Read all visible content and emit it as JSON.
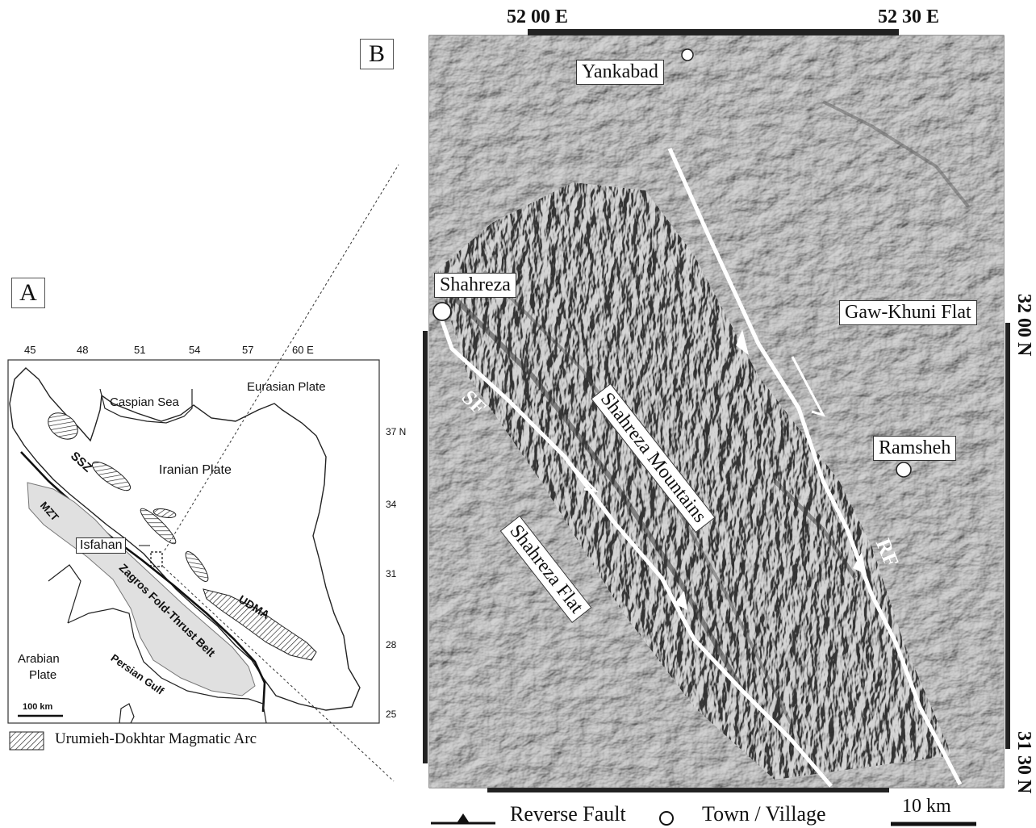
{
  "panel_a": {
    "label": "A",
    "lon_ticks": [
      "45",
      "48",
      "51",
      "54",
      "57",
      "60 E"
    ],
    "lat_ticks": [
      "37 N",
      "34",
      "31",
      "28",
      "25"
    ],
    "place_labels": {
      "caspian_sea": "Caspian Sea",
      "eurasian_plate": "Eurasian Plate",
      "iranian_plate": "Iranian Plate",
      "ssz": "SSZ",
      "mzt": "MZT",
      "isfahan": "Isfahan",
      "zagros": "Zagros Fold-Thrust Belt",
      "udma": "UDMA",
      "arabian_plate_1": "Arabian",
      "arabian_plate_2": "Plate",
      "persian_gulf": "Persian Gulf"
    },
    "scale_bar": "100 km",
    "legend_arc": "Urumieh-Dokhtar Magmatic Arc"
  },
  "panel_b": {
    "label": "B",
    "top_coords": [
      "52 00 E",
      "52 30 E"
    ],
    "right_coords": [
      "32 00 N",
      "31 30 N"
    ],
    "towns": {
      "yankabad": "Yankabad",
      "shahreza": "Shahreza",
      "ramsheh": "Ramsheh",
      "gaw_khuni": "Gaw-Khuni Flat"
    },
    "features": {
      "shahreza_mountains": "Shahreza Mountains",
      "shahreza_flat": "Shahreza Flat",
      "sf": "SF",
      "rf": "RF"
    }
  },
  "legend": {
    "reverse_fault": "Reverse Fault",
    "town_village": "Town / Village",
    "scale": "10 km"
  },
  "colors": {
    "relief_base": "#a7a7a7",
    "fault_line": "#ffffff",
    "plateau_fill": "#e0e0e0"
  }
}
